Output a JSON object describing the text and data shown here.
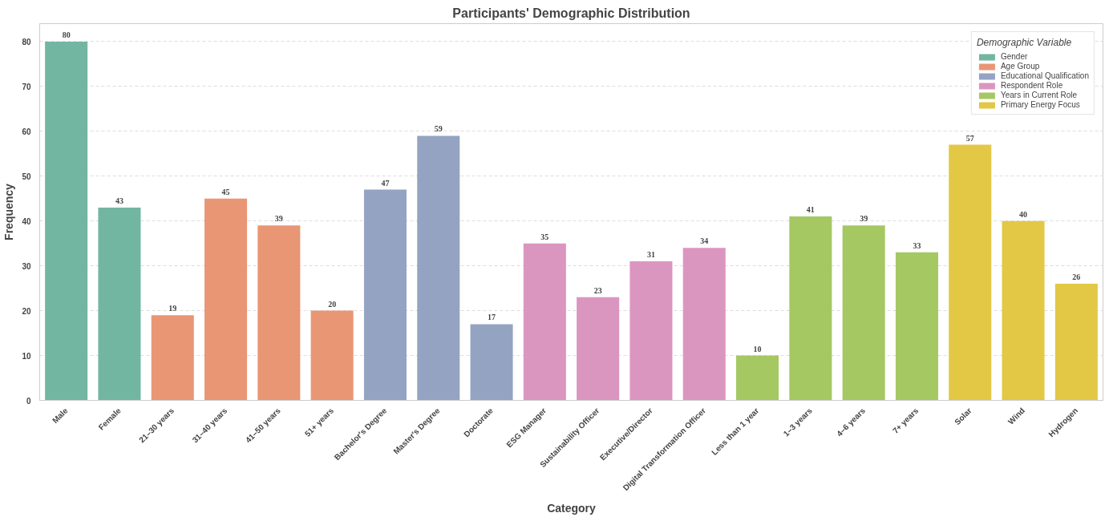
{
  "chart_data": {
    "type": "bar",
    "title": "Participants' Demographic Distribution",
    "xlabel": "Category",
    "ylabel": "Frequency",
    "legend_title": "Demographic Variable",
    "categories": [
      "Male",
      "Female",
      "21–30 years",
      "31–40 years",
      "41–50 years",
      "51+ years",
      "Bachelor's Degree",
      "Master's Degree",
      "Doctorate",
      "ESG Manager",
      "Sustainability Officer",
      "Executive/Director",
      "Digital Transformation Officer",
      "Less than 1 year",
      "1–3 years",
      "4–6 years",
      "7+ years",
      "Solar",
      "Wind",
      "Hydrogen"
    ],
    "series": [
      {
        "name": "Gender",
        "color": "#72b6a1",
        "values": [
          80,
          43,
          null,
          null,
          null,
          null,
          null,
          null,
          null,
          null,
          null,
          null,
          null,
          null,
          null,
          null,
          null,
          null,
          null,
          null
        ]
      },
      {
        "name": "Age Group",
        "color": "#e99675",
        "values": [
          null,
          null,
          19,
          45,
          39,
          20,
          null,
          null,
          null,
          null,
          null,
          null,
          null,
          null,
          null,
          null,
          null,
          null,
          null,
          null
        ]
      },
      {
        "name": "Educational Qualification",
        "color": "#95a3c3",
        "values": [
          null,
          null,
          null,
          null,
          null,
          null,
          47,
          59,
          17,
          null,
          null,
          null,
          null,
          null,
          null,
          null,
          null,
          null,
          null,
          null
        ]
      },
      {
        "name": "Respondent Role",
        "color": "#db96c0",
        "values": [
          null,
          null,
          null,
          null,
          null,
          null,
          null,
          null,
          null,
          35,
          23,
          31,
          34,
          null,
          null,
          null,
          null,
          null,
          null,
          null
        ]
      },
      {
        "name": "Years in Current Role",
        "color": "#a5c863",
        "values": [
          null,
          null,
          null,
          null,
          null,
          null,
          null,
          null,
          null,
          null,
          null,
          null,
          null,
          10,
          41,
          39,
          33,
          null,
          null,
          null
        ]
      },
      {
        "name": "Primary Energy Focus",
        "color": "#e2c845",
        "values": [
          null,
          null,
          null,
          null,
          null,
          null,
          null,
          null,
          null,
          null,
          null,
          null,
          null,
          null,
          null,
          null,
          null,
          57,
          40,
          26
        ]
      }
    ],
    "ylim": [
      0,
      84
    ],
    "yticks": [
      0,
      10,
      20,
      30,
      40,
      50,
      60,
      70,
      80
    ],
    "grid": "y",
    "legend": "top right",
    "data_labels": true
  }
}
